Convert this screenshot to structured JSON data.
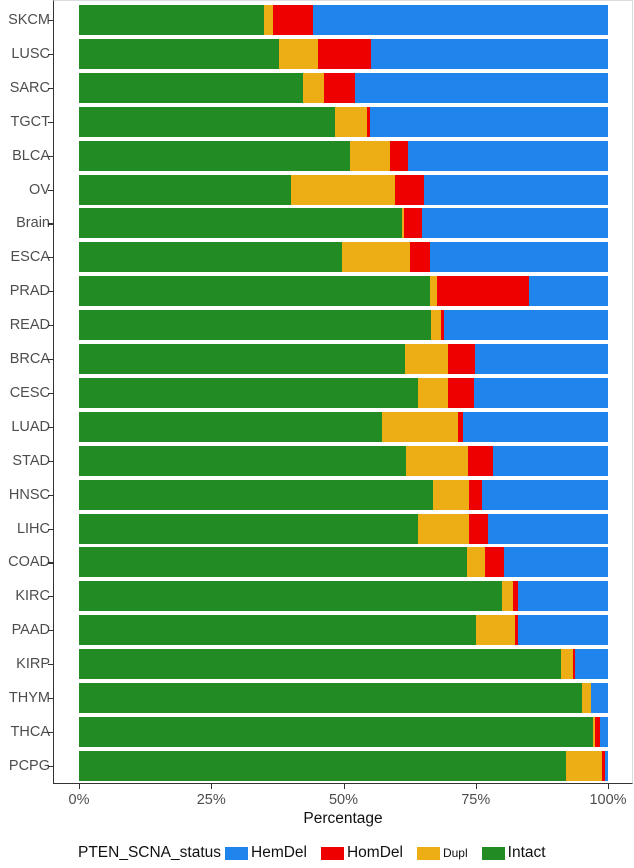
{
  "chart_data": {
    "type": "bar",
    "orientation": "horizontal",
    "stacked": true,
    "title": "",
    "xlabel": "Percentage",
    "ylabel": "",
    "xlim": [
      0,
      100
    ],
    "x_ticks": [
      "0%",
      "25%",
      "50%",
      "75%",
      "100%"
    ],
    "legend": {
      "title": "PTEN_SCNA_status",
      "position": "bottom",
      "entries": [
        {
          "name": "HemDel",
          "color": "#1F85EC"
        },
        {
          "name": "HomDel",
          "color": "#EE0000"
        },
        {
          "name": "Dupl",
          "color": "#EDAD14"
        },
        {
          "name": "Intact",
          "color": "#238B23"
        }
      ]
    },
    "categories": [
      "SKCM",
      "LUSC",
      "SARC",
      "TGCT",
      "BLCA",
      "OV",
      "Brain",
      "ESCA",
      "PRAD",
      "READ",
      "BRCA",
      "CESC",
      "LUAD",
      "STAD",
      "HNSC",
      "LIHC",
      "COAD",
      "KIRC",
      "PAAD",
      "KIRP",
      "THYM",
      "THCA",
      "PCPG"
    ],
    "series": [
      {
        "name": "Intact",
        "color": "#238B23",
        "values": [
          35.0,
          37.8,
          42.3,
          48.4,
          51.3,
          40.1,
          61.1,
          49.8,
          66.4,
          66.5,
          61.6,
          64.0,
          57.2,
          61.9,
          66.9,
          64.0,
          73.3,
          79.9,
          75.0,
          91.2,
          95.0,
          97.1,
          92.0
        ]
      },
      {
        "name": "Dupl",
        "color": "#EDAD14",
        "values": [
          1.6,
          7.4,
          4.0,
          6.0,
          7.5,
          19.7,
          0.3,
          12.7,
          1.3,
          2.0,
          8.2,
          5.8,
          14.4,
          11.6,
          6.8,
          9.8,
          3.4,
          2.2,
          7.5,
          2.1,
          1.7,
          0.4,
          6.9
        ]
      },
      {
        "name": "HomDel",
        "color": "#EE0000",
        "values": [
          7.6,
          10.0,
          5.9,
          0.6,
          3.4,
          5.5,
          3.4,
          3.9,
          17.4,
          0.5,
          5.0,
          4.8,
          1.0,
          4.8,
          2.5,
          3.5,
          3.6,
          0.9,
          0.5,
          0.4,
          0.0,
          0.9,
          0.6
        ]
      },
      {
        "name": "HemDel",
        "color": "#1F85EC",
        "values": [
          55.8,
          44.8,
          47.8,
          45.0,
          37.8,
          34.7,
          35.2,
          33.6,
          14.9,
          31.0,
          25.2,
          25.4,
          27.4,
          21.7,
          23.8,
          22.7,
          19.7,
          17.0,
          17.0,
          6.3,
          3.3,
          1.6,
          0.5
        ]
      }
    ],
    "grid": false
  }
}
